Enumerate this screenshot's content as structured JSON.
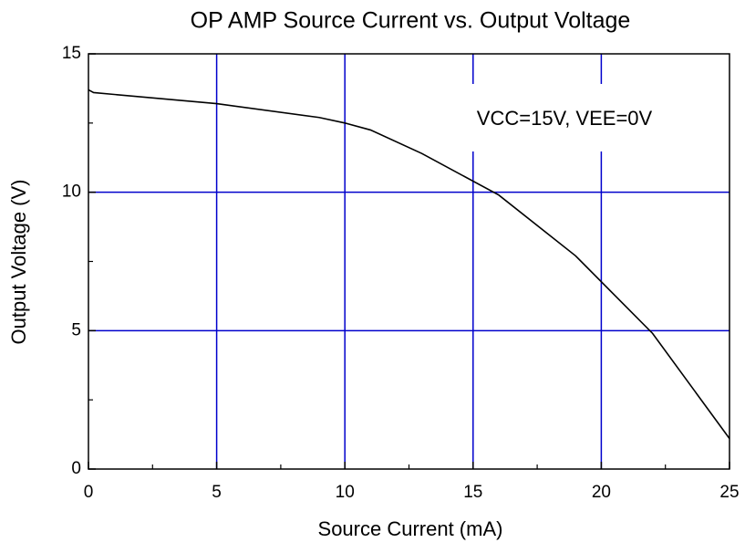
{
  "chart_data": {
    "type": "line",
    "title": "OP AMP Source Current vs. Output Voltage",
    "x_label": "Source Current (mA)",
    "y_label": "Output Voltage (V)",
    "annotation": "VCC=15V, VEE=0V",
    "xlim": [
      0,
      25
    ],
    "ylim": [
      0,
      15
    ],
    "xticks": [
      0,
      5,
      10,
      15,
      20,
      25
    ],
    "yticks": [
      0,
      5,
      10,
      15
    ],
    "grid": true,
    "grid_color": "#0000cc",
    "series": [
      {
        "name": "Output Voltage",
        "color": "#000000",
        "x": [
          0,
          0.2,
          5,
          9,
          10,
          11,
          13,
          16,
          19,
          22,
          25
        ],
        "values": [
          13.7,
          13.6,
          13.2,
          12.7,
          12.5,
          12.25,
          11.4,
          9.9,
          7.7,
          4.9,
          1.1
        ]
      }
    ]
  }
}
